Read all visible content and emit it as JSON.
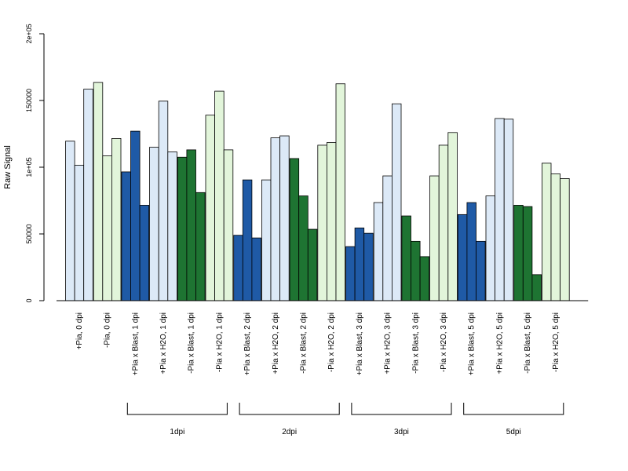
{
  "chart_data": {
    "type": "bar",
    "title": "",
    "xlabel": "",
    "ylabel": "Raw Signal",
    "ylim": [
      0,
      200000
    ],
    "yticks": [
      {
        "value": 0,
        "label": "0"
      },
      {
        "value": 50000,
        "label": "50000"
      },
      {
        "value": 100000,
        "label": "1e+05"
      },
      {
        "value": 150000,
        "label": "150000"
      },
      {
        "value": 200000,
        "label": "2e+05"
      }
    ],
    "grid": false,
    "bars_per_group": 3,
    "categories": [
      {
        "label": "+Pia, 0 dpi",
        "color": "#dce9f7",
        "values": [
          119500,
          101500,
          158500
        ]
      },
      {
        "label": "-Pia, 0 dpi",
        "color": "#e2f5da",
        "values": [
          163500,
          108500,
          121500
        ]
      },
      {
        "label": "+Pia x Blast, 1 dpi",
        "color": "#1f5aa6",
        "values": [
          96500,
          127000,
          71500
        ]
      },
      {
        "label": "+Pia x H2O, 1 dpi",
        "color": "#dce9f7",
        "values": [
          115000,
          149500,
          111500
        ]
      },
      {
        "label": "-Pia x Blast, 1 dpi",
        "color": "#1e7432",
        "values": [
          107500,
          113000,
          81000
        ]
      },
      {
        "label": "-Pia x H2O, 1 dpi",
        "color": "#e2f5da",
        "values": [
          139000,
          157000,
          113000
        ]
      },
      {
        "label": "+Pia x Blast, 2 dpi",
        "color": "#1f5aa6",
        "values": [
          49000,
          90500,
          47000
        ]
      },
      {
        "label": "+Pia x H2O, 2 dpi",
        "color": "#dce9f7",
        "values": [
          90500,
          122000,
          123500
        ]
      },
      {
        "label": "-Pia x Blast, 2 dpi",
        "color": "#1e7432",
        "values": [
          106500,
          78500,
          53500
        ]
      },
      {
        "label": "-Pia x H2O, 2 dpi",
        "color": "#e2f5da",
        "values": [
          116500,
          118500,
          162500
        ]
      },
      {
        "label": "+Pia x Blast, 3 dpi",
        "color": "#1f5aa6",
        "values": [
          40500,
          54500,
          50500
        ]
      },
      {
        "label": "+Pia x H2O, 3 dpi",
        "color": "#dce9f7",
        "values": [
          73500,
          93500,
          147500
        ]
      },
      {
        "label": "-Pia x Blast, 3 dpi",
        "color": "#1e7432",
        "values": [
          63500,
          44500,
          33000
        ]
      },
      {
        "label": "-Pia x H2O, 3 dpi",
        "color": "#e2f5da",
        "values": [
          93500,
          116500,
          126000
        ]
      },
      {
        "label": "+Pia x Blast, 5 dpi",
        "color": "#1f5aa6",
        "values": [
          64500,
          73500,
          44500
        ]
      },
      {
        "label": "+Pia x H2O, 5 dpi",
        "color": "#dce9f7",
        "values": [
          78500,
          136500,
          136000
        ]
      },
      {
        "label": "-Pia x Blast, 5 dpi",
        "color": "#1e7432",
        "values": [
          71500,
          70500,
          19500
        ]
      },
      {
        "label": "-Pia x H2O, 5 dpi",
        "color": "#e2f5da",
        "values": [
          103000,
          95000,
          91500
        ]
      }
    ],
    "groups": [
      {
        "label": "1dpi",
        "from": 2,
        "to": 5
      },
      {
        "label": "2dpi",
        "from": 6,
        "to": 9
      },
      {
        "label": "3dpi",
        "from": 10,
        "to": 13
      },
      {
        "label": "5dpi",
        "from": 14,
        "to": 17
      }
    ]
  }
}
